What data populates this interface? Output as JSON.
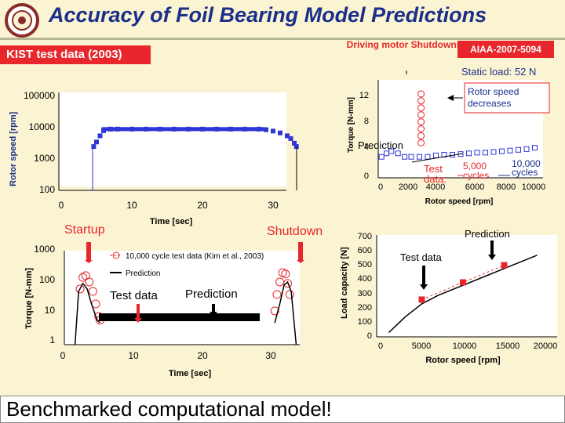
{
  "header": {
    "title": "Accuracy of Foil Bearing Model Predictions",
    "source_label": "KIST test data (2003)",
    "driving_motor": "Driving motor Shutdowns",
    "paper_id": "AIAA-2007-5094",
    "static_load": "Static load: 52 N",
    "conclusion": "Benchmarked computational model!"
  },
  "colors": {
    "red": "#e8262b",
    "navy": "#1b2f8a",
    "blue_marker": "#2f36d6",
    "background": "#fbf4d3"
  },
  "icons": [
    "logo-seal-icon",
    "arrow-down-icon",
    "arrow-left-icon"
  ],
  "chart_data": [
    {
      "id": "speed-vs-time",
      "type": "scatter",
      "ylabel": "Rotor speed [rpm]",
      "xlabel": "Time [sec]",
      "x_ticks": [
        "0",
        "10",
        "20",
        "30"
      ],
      "y_ticks": [
        "100",
        "1000",
        "10000",
        "100000"
      ],
      "xlim": [
        0,
        35
      ],
      "ylim": [
        100,
        100000
      ],
      "y_scale": "log",
      "series": [
        {
          "values_x": [
            4.6,
            5.0,
            5.5,
            6.0,
            7,
            8,
            10,
            12,
            14,
            16,
            18,
            20,
            22,
            24,
            26,
            28,
            29,
            30,
            31,
            32,
            32.5,
            33,
            33.3
          ],
          "values_y": [
            2500,
            3500,
            5500,
            8000,
            9000,
            9000,
            9000,
            9000,
            9000,
            9000,
            9000,
            9000,
            9000,
            9000,
            9000,
            9000,
            8600,
            7800,
            6800,
            5500,
            4500,
            3200,
            2500
          ]
        }
      ]
    },
    {
      "id": "torque-vs-speed",
      "type": "scatter",
      "ylabel": "Torque [N-mm]",
      "xlabel": "Rotor speed [rpm]",
      "x_ticks": [
        "0",
        "2000",
        "4000",
        "6000",
        "8000",
        "10000"
      ],
      "y_ticks": [
        "0",
        "4",
        "8",
        "12"
      ],
      "xlim": [
        0,
        10000
      ],
      "ylim": [
        0,
        14
      ],
      "annotations": {
        "rotor_decrease": "Rotor speed decreases",
        "prediction": "Prediction",
        "test_label": "Test data:",
        "cycles_5000": "5,000 cycles",
        "cycles_10000": "10,000 cycles"
      },
      "series": [
        {
          "values_x": [
            200,
            500,
            800,
            1200,
            1600,
            2000,
            2500,
            3000,
            3500,
            4000,
            4500,
            5000,
            5500,
            6000,
            6500,
            7000,
            7500,
            8000,
            8500,
            9000,
            9500
          ],
          "values_y": [
            3,
            3.5,
            3.8,
            3.5,
            3.0,
            3.0,
            3.0,
            3.0,
            3.2,
            3.3,
            3.3,
            3.4,
            3.5,
            3.6,
            3.6,
            3.7,
            3.8,
            3.9,
            4.0,
            4.1,
            4.3
          ]
        }
      ]
    },
    {
      "id": "torque-vs-time",
      "type": "scatter",
      "ylabel": "Torque [N-mm]",
      "xlabel": "Time [sec]",
      "x_ticks": [
        "0",
        "10",
        "20",
        "30"
      ],
      "y_ticks": [
        "1",
        "10",
        "100",
        "1000"
      ],
      "xlim": [
        0,
        33
      ],
      "ylim": [
        1,
        1000
      ],
      "y_scale": "log",
      "legend": [
        "10,000 cycle test data (Kim et al., 2003)",
        "Prediction"
      ],
      "annotations": {
        "startup": "Startup",
        "shutdown": "Shutdown",
        "test_data": "Test data",
        "prediction": "Prediction"
      },
      "series": [
        {
          "name": "10,000 cycle test data (Kim et al., 2003)",
          "values_x": [
            2.2,
            2.6,
            3.0,
            3.5,
            4.0,
            4.4,
            4.8,
            5.0,
            29.5,
            29.8,
            30.2,
            30.6,
            31.0,
            31.3,
            31.6
          ],
          "values_y": [
            60,
            140,
            160,
            100,
            50,
            20,
            8,
            6,
            12,
            40,
            100,
            200,
            180,
            90,
            40
          ]
        },
        {
          "name": "Prediction",
          "values": "constant ~5 N-mm from 5 s to 29 s"
        }
      ]
    },
    {
      "id": "load-vs-speed",
      "type": "line",
      "ylabel": "Load capacity [N]",
      "xlabel": "Rotor speed [rpm]",
      "x_ticks": [
        "0",
        "5000",
        "10000",
        "15000",
        "20000"
      ],
      "y_ticks": [
        "0",
        "100",
        "200",
        "300",
        "400",
        "500",
        "600",
        "700"
      ],
      "xlim": [
        0,
        20000
      ],
      "ylim": [
        0,
        700
      ],
      "annotations": {
        "prediction": "Prediction",
        "test_data": "Test data"
      },
      "series": [
        {
          "name": "Test data",
          "x": [
            5000,
            10000,
            15000
          ],
          "y": [
            260,
            380,
            500
          ]
        },
        {
          "name": "Prediction",
          "x": [
            1000,
            3000,
            5000,
            7000,
            10000,
            13000,
            16000,
            19000
          ],
          "y": [
            30,
            140,
            230,
            290,
            360,
            430,
            500,
            570
          ]
        }
      ]
    }
  ]
}
